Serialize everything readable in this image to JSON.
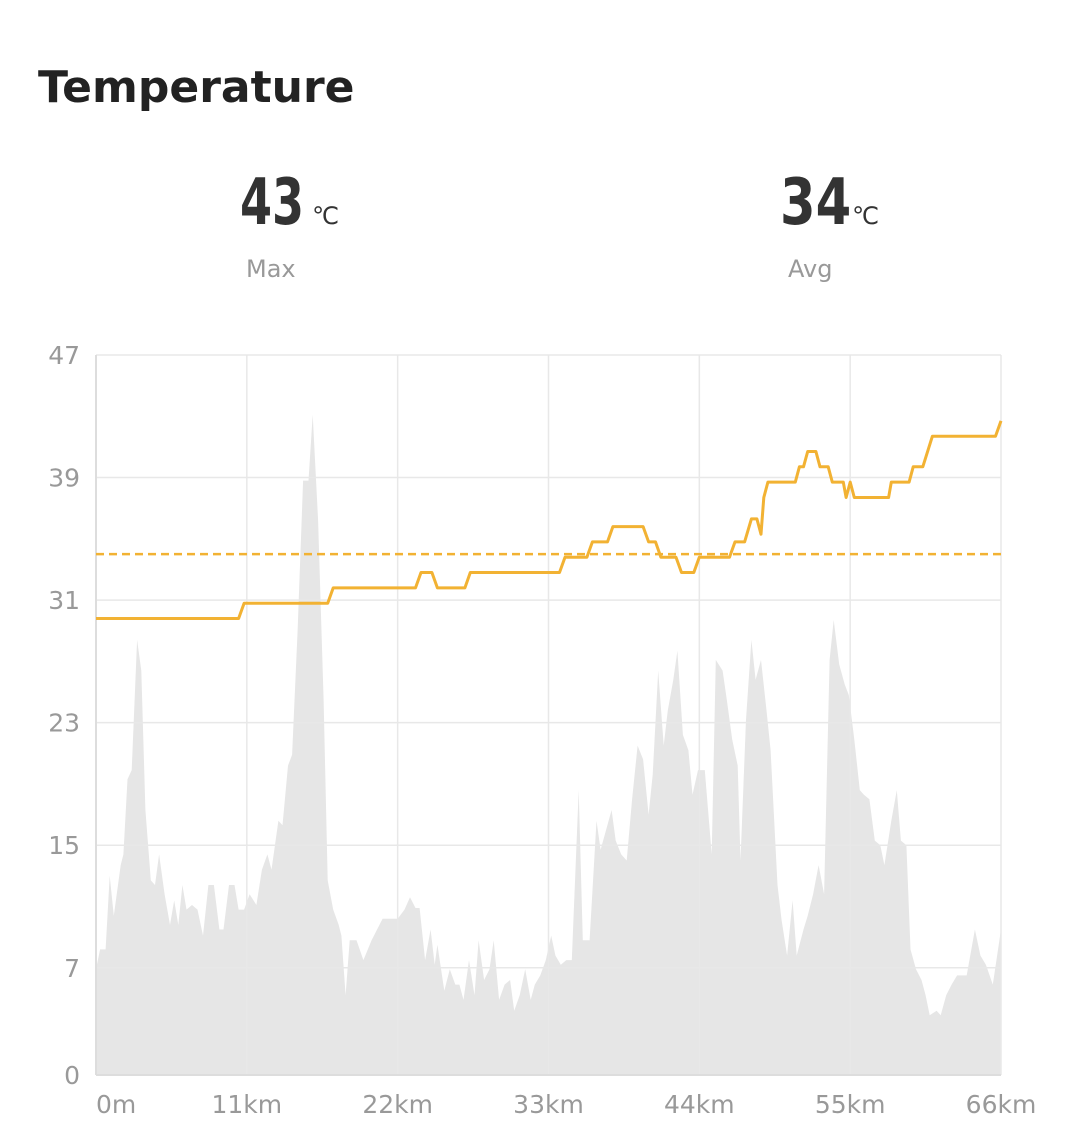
{
  "title": "Temperature",
  "stats": [
    {
      "value": 43,
      "unit": "℃",
      "label": "Max"
    },
    {
      "value": 34,
      "unit": "℃",
      "label": "Avg"
    }
  ],
  "chart_data": {
    "type": "line",
    "xlim": [
      0,
      66
    ],
    "xticks": [
      {
        "value": 0,
        "label": "0m"
      },
      {
        "value": 11,
        "label": "11km"
      },
      {
        "value": 22,
        "label": "22km"
      },
      {
        "value": 33,
        "label": "33km"
      },
      {
        "value": 44,
        "label": "44km"
      },
      {
        "value": 55,
        "label": "55km"
      },
      {
        "value": 66,
        "label": "66km"
      }
    ],
    "ylim": [
      0,
      47
    ],
    "yticks": [
      0,
      7,
      15,
      23,
      31,
      39,
      47
    ],
    "grid": true,
    "series": [
      {
        "kind": "area",
        "color": "#e6e6e6",
        "x": [
          0,
          0.3,
          0.7,
          1.0,
          1.3,
          1.8,
          2.0,
          2.3,
          2.6,
          3.0,
          3.3,
          3.6,
          4.0,
          4.3,
          4.6,
          5.0,
          5.4,
          5.7,
          6.0,
          6.3,
          6.6,
          7.0,
          7.4,
          7.8,
          8.2,
          8.6,
          9.0,
          9.3,
          9.7,
          10.1,
          10.4,
          10.8,
          11.2,
          11.7,
          12.1,
          12.5,
          12.8,
          13.3,
          13.6,
          14.0,
          14.3,
          14.7,
          15.1,
          15.5,
          15.8,
          16.2,
          16.6,
          16.9,
          17.3,
          17.7,
          17.9,
          18.2,
          18.5,
          19.0,
          19.5,
          20.1,
          20.9,
          22.0,
          22.5,
          22.9,
          23.3,
          23.6,
          24.0,
          24.4,
          24.7,
          24.9,
          25.4,
          25.8,
          26.2,
          26.5,
          26.8,
          27.2,
          27.6,
          27.9,
          28.3,
          28.7,
          29.0,
          29.4,
          29.8,
          30.2,
          30.5,
          30.9,
          31.3,
          31.7,
          32.0,
          32.4,
          32.8,
          33.2,
          33.5,
          33.9,
          34.3,
          34.7,
          35.2,
          35.5,
          36.0,
          36.5,
          36.8,
          37.2,
          37.6,
          37.9,
          38.3,
          38.7,
          39.1,
          39.5,
          39.9,
          40.3,
          40.6,
          41.0,
          41.4,
          41.7,
          42.1,
          42.4,
          42.8,
          43.2,
          43.5,
          43.9,
          44.4,
          44.9,
          45.2,
          45.7,
          46.0,
          46.4,
          46.8,
          47.0,
          47.4,
          47.8,
          48.1,
          48.5,
          48.9,
          49.2,
          49.7,
          50.0,
          50.4,
          50.8,
          51.1,
          51.6,
          51.9,
          52.3,
          52.7,
          53.1,
          53.5,
          53.8,
          54.2,
          54.6,
          54.9,
          55.3,
          55.7,
          56.0,
          56.4,
          56.8,
          57.2,
          57.5,
          58.0,
          58.4,
          58.7,
          59.1,
          59.4,
          59.8,
          60.2,
          60.5,
          60.8,
          61.3,
          61.6,
          62.0,
          62.4,
          62.8,
          63.5,
          64.1,
          64.5,
          64.9,
          65.4,
          66.0
        ],
        "values": [
          6.9,
          8.2,
          8.2,
          13.0,
          10.4,
          13.7,
          14.4,
          19.3,
          19.9,
          28.4,
          26.4,
          17.3,
          12.7,
          12.4,
          14.4,
          11.8,
          9.8,
          11.4,
          9.8,
          12.4,
          10.8,
          11.1,
          10.8,
          9.1,
          12.4,
          12.4,
          9.5,
          9.5,
          12.4,
          12.4,
          10.8,
          10.8,
          11.8,
          11.1,
          13.4,
          14.4,
          13.4,
          16.6,
          16.3,
          20.2,
          20.9,
          29.0,
          38.8,
          38.8,
          43.1,
          36.2,
          24.5,
          12.7,
          10.8,
          9.8,
          9.1,
          5.2,
          8.8,
          8.8,
          7.5,
          8.8,
          10.2,
          10.2,
          10.8,
          11.6,
          10.9,
          10.9,
          7.5,
          9.5,
          7.2,
          8.5,
          5.5,
          6.9,
          5.9,
          5.9,
          4.9,
          7.5,
          5.2,
          8.8,
          6.2,
          6.9,
          8.8,
          4.9,
          5.9,
          6.2,
          4.2,
          5.2,
          6.9,
          4.9,
          5.9,
          6.5,
          7.5,
          9.1,
          7.8,
          7.2,
          7.5,
          7.5,
          18.6,
          8.8,
          8.8,
          16.6,
          14.7,
          16.0,
          17.3,
          15.3,
          14.4,
          14.0,
          18.0,
          21.5,
          20.6,
          17.0,
          19.6,
          26.4,
          21.5,
          23.8,
          25.8,
          27.7,
          22.2,
          21.2,
          18.3,
          19.9,
          19.9,
          14.4,
          27.1,
          26.4,
          24.5,
          21.9,
          20.2,
          14.0,
          23.2,
          28.4,
          25.8,
          27.1,
          23.8,
          21.2,
          12.4,
          10.1,
          7.8,
          11.4,
          7.8,
          9.5,
          10.4,
          11.8,
          13.7,
          11.8,
          27.1,
          29.7,
          26.8,
          25.5,
          24.8,
          21.9,
          18.6,
          18.3,
          18.0,
          15.3,
          15.0,
          13.7,
          16.6,
          18.6,
          15.3,
          15.0,
          8.2,
          6.9,
          6.2,
          5.2,
          3.9,
          4.2,
          3.9,
          5.2,
          5.9,
          6.5,
          6.5,
          9.5,
          7.8,
          7.2,
          5.9,
          9.5
        ]
      },
      {
        "kind": "line",
        "color": "#f2b233",
        "x": [
          0,
          10.4,
          10.8,
          16.9,
          17.3,
          23.3,
          23.7,
          24.5,
          24.9,
          26.9,
          27.3,
          33.8,
          34.2,
          35.8,
          36.2,
          37.3,
          37.7,
          39.9,
          40.3,
          40.8,
          41.2,
          42.3,
          42.7,
          43.6,
          44,
          46.2,
          46.6,
          47.3,
          47.8,
          48.2,
          48.5,
          48.7,
          49,
          51,
          51.3,
          51.6,
          51.9,
          52.5,
          52.8,
          53.4,
          53.7,
          54.5,
          54.7,
          55,
          55.3,
          57.8,
          58,
          59.3,
          59.6,
          60.3,
          61,
          65.6,
          66
        ],
        "values": [
          29.8,
          29.8,
          30.8,
          30.8,
          31.8,
          31.8,
          32.8,
          32.8,
          31.8,
          31.8,
          32.8,
          32.8,
          33.8,
          33.8,
          34.8,
          34.8,
          35.8,
          35.8,
          34.8,
          34.8,
          33.8,
          33.8,
          32.8,
          32.8,
          33.8,
          33.8,
          34.8,
          34.8,
          36.3,
          36.3,
          35.3,
          37.7,
          38.7,
          38.7,
          39.7,
          39.7,
          40.7,
          40.7,
          39.7,
          39.7,
          38.7,
          38.7,
          37.7,
          38.7,
          37.7,
          37.7,
          38.7,
          38.7,
          39.7,
          39.7,
          41.7,
          41.7,
          42.7
        ]
      }
    ],
    "avg_line_color": "#f2b233"
  }
}
